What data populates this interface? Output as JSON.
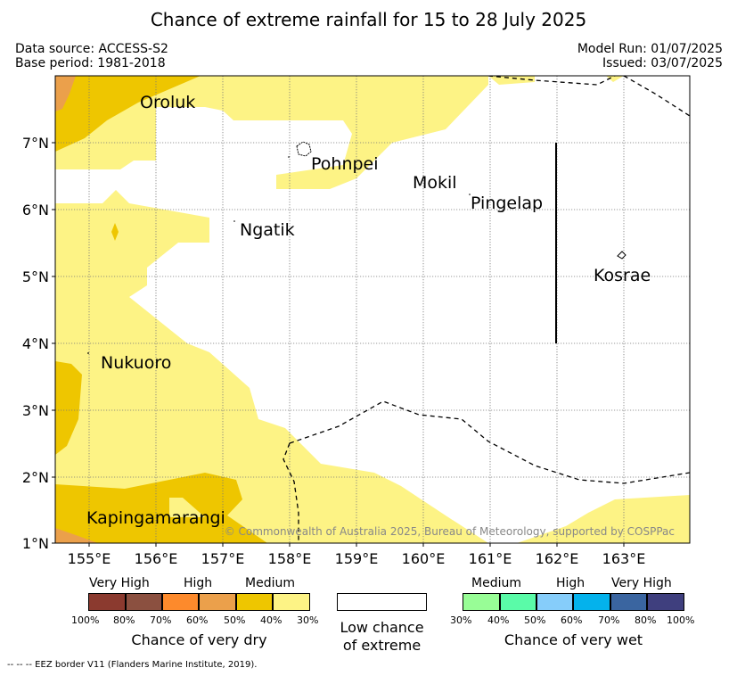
{
  "title": "Chance of extreme rainfall for 15 to 28 July 2025",
  "meta": {
    "data_source": "Data source: ACCESS-S2",
    "base_period": "Base period: 1981-2018",
    "model_run": "Model Run: 01/07/2025",
    "issued": "Issued: 03/07/2025"
  },
  "map": {
    "lon_ticks": [
      "155°E",
      "156°E",
      "157°E",
      "158°E",
      "159°E",
      "160°E",
      "161°E",
      "162°E",
      "163°E"
    ],
    "lat_ticks": [
      "7°N",
      "6°N",
      "5°N",
      "4°N",
      "3°N",
      "2°N",
      "1°N"
    ],
    "places": {
      "oroluk": "Oroluk",
      "pohnpei": "Pohnpei",
      "mokil": "Mokil",
      "pingelap": "Pingelap",
      "ngatik": "Ngatik",
      "kosrae": "Kosrae",
      "nukuoro": "Nukuoro",
      "kapingamarangi": "Kapingamarangi"
    },
    "copyright": "© Commonwealth of Australia 2025, Bureau of Meteorology, supported by COSPPac",
    "colors": {
      "dry_very_high": [
        "#8b3a2f",
        "#8b5040"
      ],
      "dry_high": [
        "#fd8a2c",
        "#eba04b"
      ],
      "dry_medium": [
        "#eec600",
        "#fdf385"
      ],
      "wet_medium": [
        "#98fd96",
        "#5afba8"
      ],
      "wet_high": [
        "#86cdfa",
        "#04b2ec"
      ],
      "wet_very_high": [
        "#3a65a0",
        "#3f3f7e"
      ]
    }
  },
  "legend": {
    "dry": {
      "headers": [
        "Very High",
        "High",
        "Medium"
      ],
      "ticks": [
        "100%",
        "80%",
        "70%",
        "60%",
        "50%",
        "40%",
        "30%"
      ],
      "caption": "Chance of very dry"
    },
    "low": {
      "line1": "Low chance",
      "line2": "of extreme"
    },
    "wet": {
      "headers": [
        "Medium",
        "High",
        "Very High"
      ],
      "ticks": [
        "30%",
        "40%",
        "50%",
        "60%",
        "70%",
        "80%",
        "100%"
      ],
      "caption": "Chance of very wet"
    },
    "eez_note": "--  --  -- EEZ border V11 (Flanders Marine Institute, 2019)."
  }
}
